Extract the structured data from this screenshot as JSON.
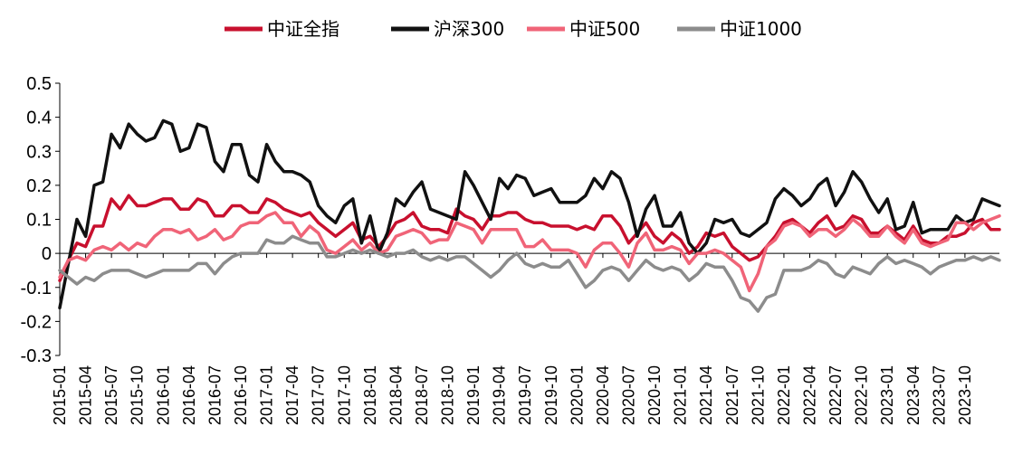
{
  "chart_data": {
    "type": "line",
    "title": "",
    "xlabel": "",
    "ylabel": "",
    "ylim": [
      -0.3,
      0.5
    ],
    "yticks": [
      "0.5",
      "0.4",
      "0.3",
      "0.2",
      "0.1",
      "0",
      "-0.1",
      "-0.2",
      "-0.3"
    ],
    "grid": false,
    "legend_position": "top-center",
    "x_tick_labels": [
      "2015-01",
      "2015-04",
      "2015-07",
      "2015-10",
      "2016-01",
      "2016-04",
      "2016-07",
      "2016-10",
      "2017-01",
      "2017-04",
      "2017-07",
      "2017-10",
      "2018-01",
      "2018-04",
      "2018-07",
      "2018-10",
      "2019-01",
      "2019-04",
      "2019-07",
      "2019-10",
      "2020-01",
      "2020-04",
      "2020-07",
      "2020-10",
      "2021-01",
      "2021-04",
      "2021-07",
      "2021-10",
      "2022-01",
      "2022-04",
      "2022-07",
      "2022-10",
      "2023-01",
      "2023-04",
      "2023-07",
      "2023-10"
    ],
    "x_tick_step": 3,
    "series": [
      {
        "name": "中证全指",
        "color": "#c8102e",
        "width": 3.5,
        "values": [
          -0.08,
          -0.02,
          0.03,
          0.02,
          0.08,
          0.08,
          0.16,
          0.13,
          0.17,
          0.14,
          0.14,
          0.15,
          0.16,
          0.16,
          0.13,
          0.13,
          0.16,
          0.15,
          0.11,
          0.11,
          0.14,
          0.14,
          0.12,
          0.12,
          0.16,
          0.15,
          0.13,
          0.12,
          0.11,
          0.12,
          0.09,
          0.07,
          0.05,
          0.07,
          0.09,
          0.04,
          0.05,
          0.02,
          0.05,
          0.09,
          0.1,
          0.12,
          0.08,
          0.07,
          0.07,
          0.06,
          0.13,
          0.11,
          0.1,
          0.07,
          0.11,
          0.11,
          0.12,
          0.12,
          0.1,
          0.09,
          0.09,
          0.08,
          0.08,
          0.08,
          0.07,
          0.08,
          0.07,
          0.11,
          0.11,
          0.08,
          0.03,
          0.06,
          0.09,
          0.05,
          0.03,
          0.06,
          0.04,
          0.0,
          0.02,
          0.06,
          0.05,
          0.06,
          0.02,
          0.0,
          -0.02,
          -0.01,
          0.02,
          0.05,
          0.09,
          0.1,
          0.08,
          0.06,
          0.09,
          0.11,
          0.07,
          0.08,
          0.11,
          0.1,
          0.06,
          0.06,
          0.08,
          0.06,
          0.04,
          0.08,
          0.04,
          0.03,
          0.03,
          0.05,
          0.05,
          0.06,
          0.09,
          0.1,
          0.07,
          0.07
        ]
      },
      {
        "name": "沪深300",
        "color": "#111111",
        "width": 3.5,
        "values": [
          -0.16,
          -0.03,
          0.1,
          0.05,
          0.2,
          0.21,
          0.35,
          0.31,
          0.38,
          0.35,
          0.33,
          0.34,
          0.39,
          0.38,
          0.3,
          0.31,
          0.38,
          0.37,
          0.27,
          0.24,
          0.32,
          0.32,
          0.23,
          0.21,
          0.32,
          0.27,
          0.24,
          0.24,
          0.23,
          0.21,
          0.14,
          0.11,
          0.09,
          0.14,
          0.16,
          0.03,
          0.11,
          0.0,
          0.06,
          0.16,
          0.14,
          0.18,
          0.21,
          0.13,
          0.12,
          0.11,
          0.1,
          0.24,
          0.2,
          0.15,
          0.1,
          0.22,
          0.19,
          0.23,
          0.22,
          0.17,
          0.18,
          0.19,
          0.15,
          0.15,
          0.15,
          0.17,
          0.22,
          0.19,
          0.24,
          0.22,
          0.15,
          0.05,
          0.13,
          0.17,
          0.08,
          0.08,
          0.12,
          0.03,
          0.0,
          0.03,
          0.1,
          0.09,
          0.1,
          0.06,
          0.05,
          0.07,
          0.09,
          0.16,
          0.19,
          0.17,
          0.14,
          0.16,
          0.2,
          0.22,
          0.14,
          0.18,
          0.24,
          0.21,
          0.16,
          0.12,
          0.16,
          0.07,
          0.08,
          0.15,
          0.06,
          0.07,
          0.07,
          0.07,
          0.11,
          0.09,
          0.1,
          0.16,
          0.15,
          0.14
        ]
      },
      {
        "name": "中证500",
        "color": "#f06478",
        "width": 3.5,
        "values": [
          -0.07,
          -0.02,
          -0.01,
          -0.02,
          0.01,
          0.02,
          0.01,
          0.03,
          0.01,
          0.03,
          0.02,
          0.05,
          0.07,
          0.07,
          0.06,
          0.07,
          0.04,
          0.05,
          0.07,
          0.04,
          0.05,
          0.08,
          0.09,
          0.09,
          0.11,
          0.12,
          0.09,
          0.09,
          0.05,
          0.08,
          0.06,
          0.01,
          0.0,
          0.02,
          0.04,
          0.01,
          0.03,
          0.0,
          0.01,
          0.05,
          0.06,
          0.07,
          0.06,
          0.03,
          0.04,
          0.04,
          0.09,
          0.08,
          0.07,
          0.03,
          0.07,
          0.07,
          0.07,
          0.07,
          0.02,
          0.02,
          0.04,
          0.01,
          0.01,
          0.01,
          0.0,
          -0.04,
          0.01,
          0.03,
          0.03,
          0.0,
          -0.04,
          0.03,
          0.06,
          0.01,
          0.01,
          0.02,
          0.01,
          -0.03,
          0.0,
          0.0,
          0.01,
          0.0,
          -0.02,
          -0.04,
          -0.11,
          -0.06,
          0.02,
          0.04,
          0.08,
          0.09,
          0.08,
          0.05,
          0.07,
          0.07,
          0.05,
          0.07,
          0.1,
          0.08,
          0.05,
          0.05,
          0.08,
          0.05,
          0.03,
          0.07,
          0.03,
          0.02,
          0.03,
          0.04,
          0.09,
          0.09,
          0.07,
          0.09,
          0.1,
          0.11
        ]
      },
      {
        "name": "中证1000",
        "color": "#8c8c8c",
        "width": 3.5,
        "values": [
          -0.05,
          -0.07,
          -0.09,
          -0.07,
          -0.08,
          -0.06,
          -0.05,
          -0.05,
          -0.05,
          -0.06,
          -0.07,
          -0.06,
          -0.05,
          -0.05,
          -0.05,
          -0.05,
          -0.03,
          -0.03,
          -0.06,
          -0.03,
          -0.01,
          0.0,
          0.0,
          0.0,
          0.04,
          0.03,
          0.03,
          0.05,
          0.04,
          0.03,
          0.03,
          -0.01,
          -0.01,
          0.0,
          0.01,
          0.0,
          0.01,
          0.0,
          -0.01,
          0.0,
          0.0,
          0.01,
          -0.01,
          -0.02,
          -0.01,
          -0.02,
          -0.01,
          -0.01,
          -0.03,
          -0.05,
          -0.07,
          -0.05,
          -0.02,
          0.0,
          -0.03,
          -0.04,
          -0.03,
          -0.04,
          -0.04,
          -0.02,
          -0.06,
          -0.1,
          -0.08,
          -0.05,
          -0.04,
          -0.05,
          -0.08,
          -0.05,
          -0.02,
          -0.04,
          -0.05,
          -0.04,
          -0.05,
          -0.08,
          -0.06,
          -0.03,
          -0.04,
          -0.04,
          -0.08,
          -0.13,
          -0.14,
          -0.17,
          -0.13,
          -0.12,
          -0.05,
          -0.05,
          -0.05,
          -0.04,
          -0.02,
          -0.03,
          -0.06,
          -0.07,
          -0.04,
          -0.05,
          -0.06,
          -0.03,
          -0.01,
          -0.03,
          -0.02,
          -0.03,
          -0.04,
          -0.06,
          -0.04,
          -0.03,
          -0.02,
          -0.02,
          -0.01,
          -0.02,
          -0.01,
          -0.02
        ]
      }
    ]
  }
}
